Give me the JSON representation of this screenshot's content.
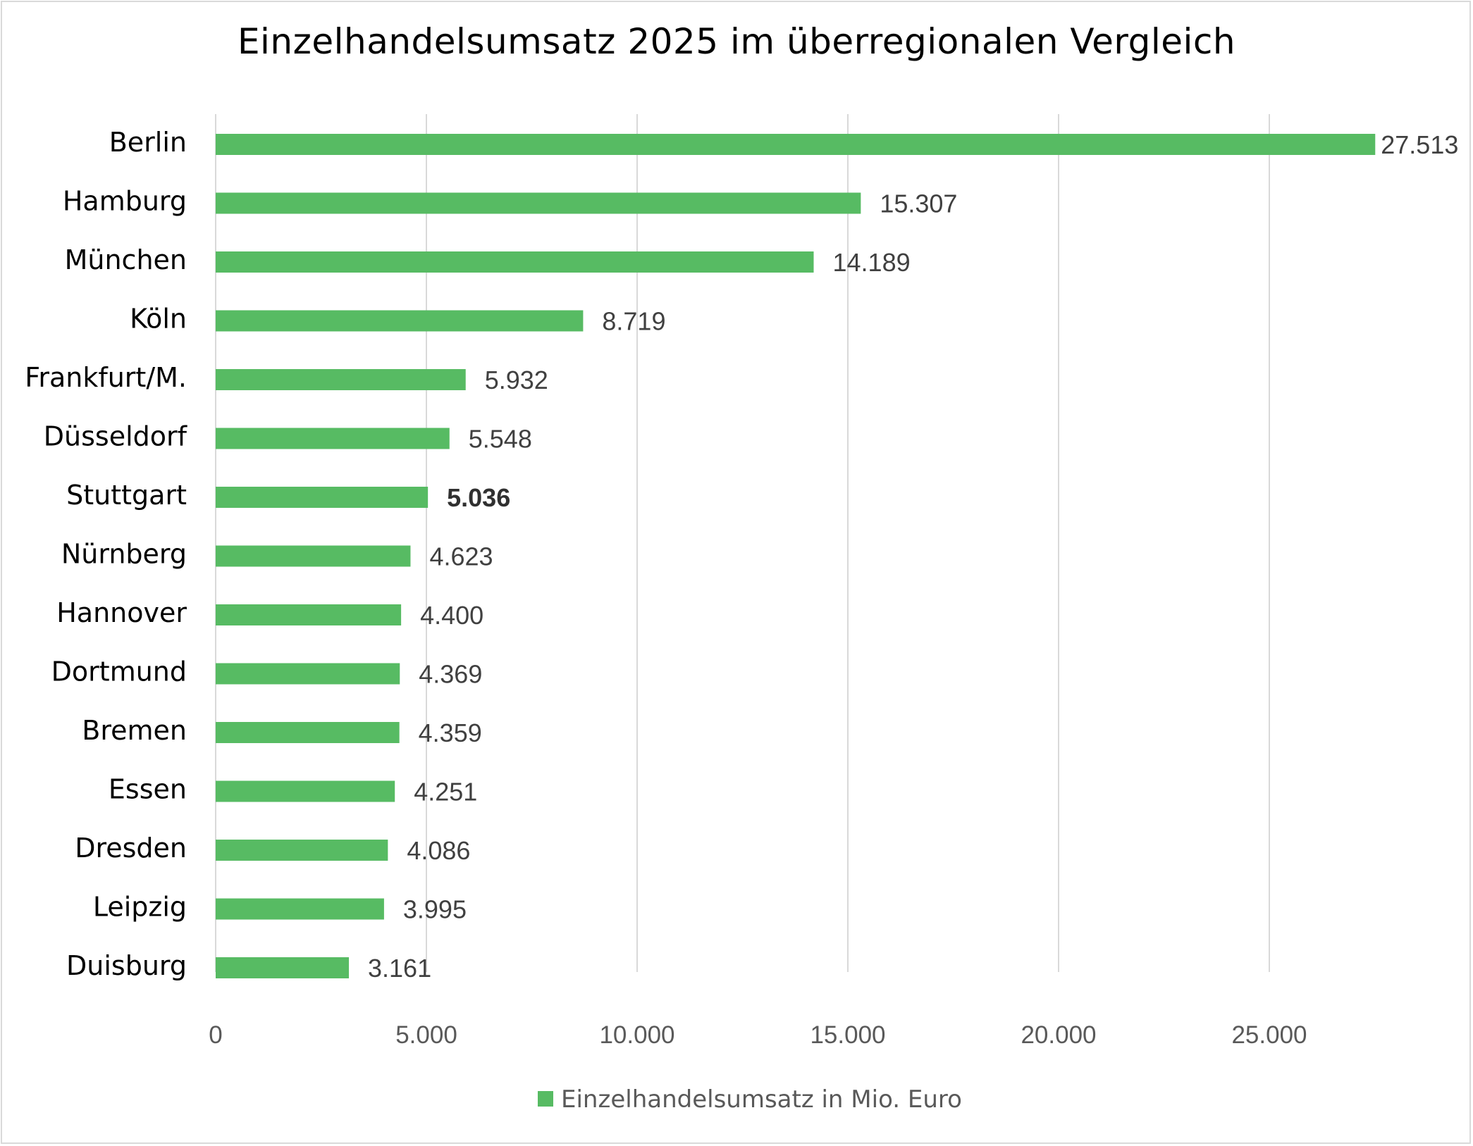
{
  "chart_data": {
    "type": "bar",
    "orientation": "horizontal",
    "title": "Einzelhandelsumsatz 2025 im überregionalen Vergleich",
    "categories": [
      "Berlin",
      "Hamburg",
      "München",
      "Köln",
      "Frankfurt/M.",
      "Düsseldorf",
      "Stuttgart",
      "Nürnberg",
      "Hannover",
      "Dortmund",
      "Bremen",
      "Essen",
      "Dresden",
      "Leipzig",
      "Duisburg"
    ],
    "series": [
      {
        "name": "Einzelhandelsumsatz in Mio. Euro",
        "color": "#57bb63",
        "values": [
          27513,
          15307,
          14189,
          8719,
          5932,
          5548,
          5036,
          4623,
          4400,
          4369,
          4359,
          4251,
          4086,
          3995,
          3161
        ],
        "value_labels": [
          "27.513",
          "15.307",
          "14.189",
          "8.719",
          "5.932",
          "5.548",
          "5.036",
          "4.623",
          "4.400",
          "4.369",
          "4.359",
          "4.251",
          "4.086",
          "3.995",
          "3.161"
        ],
        "highlighted_label": "Stuttgart"
      }
    ],
    "xlim": [
      0,
      27513
    ],
    "x_ticks": [
      0,
      5000,
      10000,
      15000,
      20000,
      25000
    ],
    "x_tick_labels": [
      "0",
      "5.000",
      "10.000",
      "15.000",
      "20.000",
      "25.000"
    ],
    "grid": "vertical",
    "grid_color": "#d9d9d9",
    "legend_position": "bottom"
  }
}
